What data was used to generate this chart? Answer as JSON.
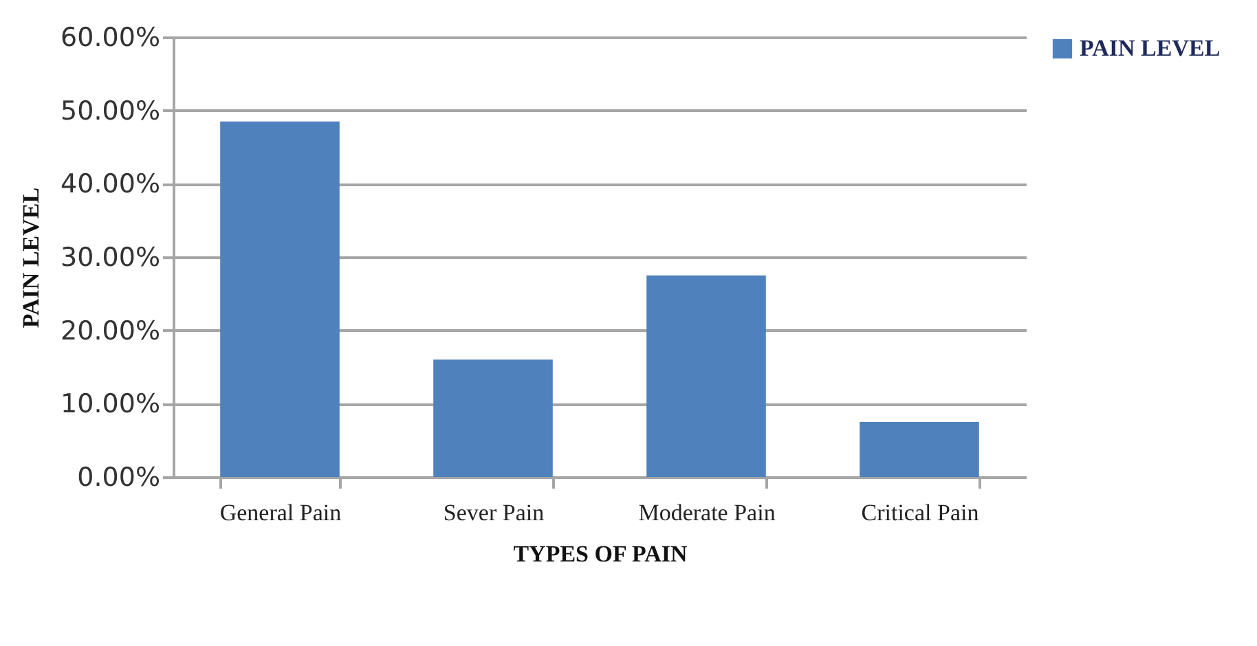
{
  "chart_data": {
    "type": "bar",
    "xlabel": "TYPES OF PAIN",
    "ylabel": "PAIN LEVEL",
    "categories": [
      "General Pain",
      "Sever Pain",
      "Moderate Pain",
      "Critical Pain"
    ],
    "series": [
      {
        "name": "PAIN LEVEL",
        "color": "#4f81bd",
        "values": [
          48.5,
          16,
          27.5,
          7.5
        ]
      }
    ],
    "ylim": [
      0,
      60
    ],
    "yticks": [
      {
        "value": 0,
        "label": "0.00%"
      },
      {
        "value": 10,
        "label": "10.00%"
      },
      {
        "value": 20,
        "label": "20.00%"
      },
      {
        "value": 30,
        "label": "30.00%"
      },
      {
        "value": 40,
        "label": "40.00%"
      },
      {
        "value": 50,
        "label": "50.00%"
      },
      {
        "value": 60,
        "label": "60.00%"
      }
    ],
    "grid": "y",
    "legend": "right"
  }
}
